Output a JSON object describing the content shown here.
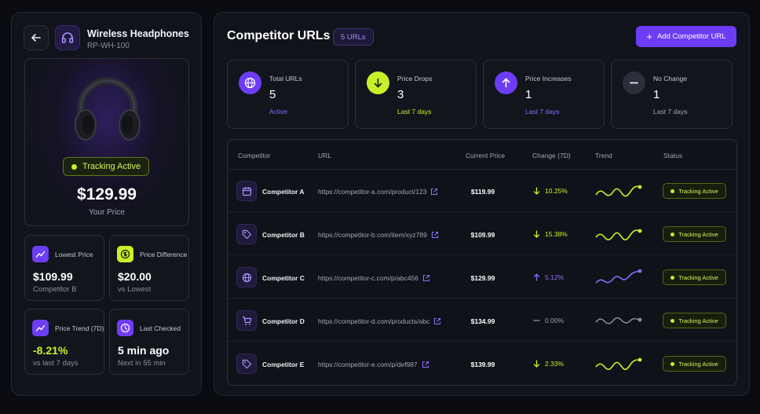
{
  "product": {
    "title": "Wireless Headphones",
    "sku": "RP-WH-100",
    "tracking_label": "Tracking Active",
    "price": "$129.99",
    "price_caption": "Your Price"
  },
  "left_stats": [
    {
      "label": "Lowest Price",
      "value": "$109.99",
      "sub": "Competitor B",
      "icon": "trend-up-icon",
      "value_color": "#ffffff"
    },
    {
      "label": "Price Difference",
      "value": "$20.00",
      "sub": "vs Lowest",
      "icon": "dollar-icon",
      "value_color": "#ffffff"
    },
    {
      "label": "Price Trend (7D)",
      "value": "-8.21%",
      "sub": "vs last 7 days",
      "icon": "trend-up-icon",
      "value_color": "#c8f02a"
    },
    {
      "label": "Last Checked",
      "value": "5 min ago",
      "sub": "Next in 55 min",
      "icon": "clock-icon",
      "value_color": "#ffffff"
    }
  ],
  "header": {
    "title": "Competitor URLs",
    "badge": "5 URLs",
    "add_button": "Add Competitor URL"
  },
  "kpis": [
    {
      "label": "Total URLs",
      "value": "5",
      "sub": "Active",
      "sub_color": "#8b6cff",
      "icon": "globe-icon"
    },
    {
      "label": "Price Drops",
      "value": "3",
      "sub": "Last 7 days",
      "sub_color": "#c8f02a",
      "icon": "arrow-down-icon"
    },
    {
      "label": "Price Increases",
      "value": "1",
      "sub": "Last 7 days",
      "sub_color": "#8b6cff",
      "icon": "arrow-up-icon"
    },
    {
      "label": "No Change",
      "value": "1",
      "sub": "Last 7 days",
      "sub_color": "#a3a8b4",
      "icon": "minus-icon"
    }
  ],
  "table": {
    "headers": [
      "Competitor",
      "URL",
      "Current Price",
      "Change (7D)",
      "Trend",
      "Status"
    ],
    "rows": [
      {
        "name": "Competitor A",
        "url": "https://competitor-a.com/product/123",
        "price": "$119.99",
        "change": "10.25%",
        "direction": "down",
        "icon": "calendar-icon",
        "status": "Tracking Active"
      },
      {
        "name": "Competitor B",
        "url": "https://competitor-b.com/item/xyz789",
        "price": "$109.99",
        "change": "15.38%",
        "direction": "down",
        "icon": "tag-icon",
        "status": "Tracking Active"
      },
      {
        "name": "Competitor C",
        "url": "https://competitor-c.com/p/abc456",
        "price": "$129.99",
        "change": "5.12%",
        "direction": "up",
        "icon": "globe-icon",
        "status": "Tracking Active"
      },
      {
        "name": "Competitor D",
        "url": "https://competitor-d.com/products/abc",
        "price": "$134.99",
        "change": "0.00%",
        "direction": "flat",
        "icon": "cart-icon",
        "status": "Tracking Active"
      },
      {
        "name": "Competitor E",
        "url": "https://competitor-e.com/p/def987",
        "price": "$139.99",
        "change": "2.33%",
        "direction": "down",
        "icon": "tag-icon",
        "status": "Tracking Active"
      }
    ]
  },
  "colors": {
    "accent": "#6d3df5",
    "lime": "#c8f02a",
    "purple": "#8b6cff",
    "gray": "#9aa0ac"
  }
}
